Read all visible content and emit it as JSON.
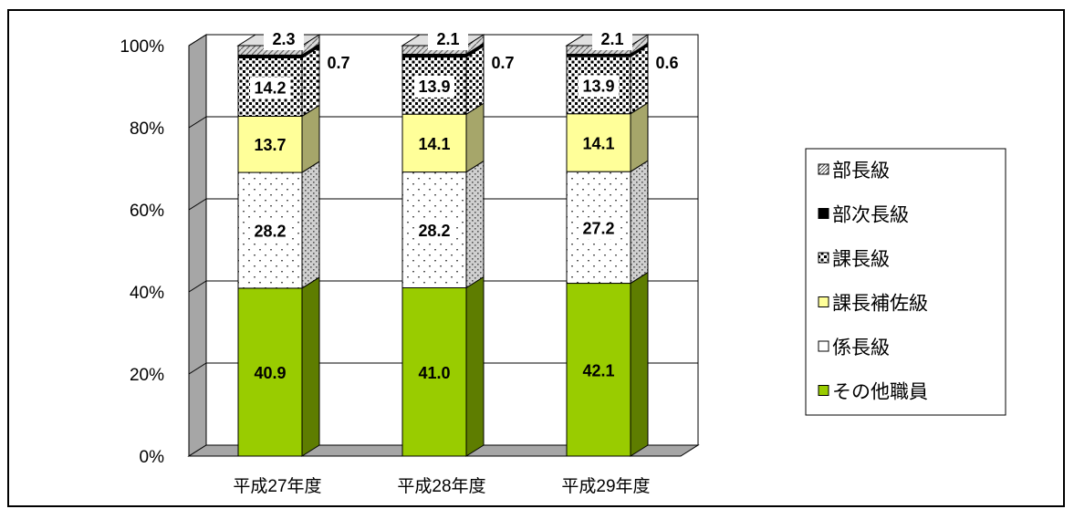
{
  "chart_data": {
    "type": "bar",
    "stacked": true,
    "percent_axis": true,
    "categories": [
      "平成27年度",
      "平成28年度",
      "平成29年度"
    ],
    "series": [
      {
        "name": "その他職員",
        "values": [
          40.9,
          41.0,
          42.1
        ],
        "color": "#99cc00"
      },
      {
        "name": "係長級",
        "values": [
          28.2,
          28.2,
          27.2
        ],
        "color": "#ffffff"
      },
      {
        "name": "課長補佐級",
        "values": [
          13.7,
          14.1,
          14.1
        ],
        "color": "#ffff99"
      },
      {
        "name": "課長級",
        "values": [
          14.2,
          13.9,
          13.9
        ],
        "color": "#ffffff"
      },
      {
        "name": "部次長級",
        "values": [
          0.7,
          0.7,
          0.6
        ],
        "color": "#000000"
      },
      {
        "name": "部長級",
        "values": [
          2.3,
          2.1,
          2.1
        ],
        "color": "#c0c0c0"
      }
    ],
    "data_labels": [
      [
        "40.9",
        "28.2",
        "13.7",
        "14.2",
        "0.7",
        "2.3"
      ],
      [
        "41.0",
        "28.2",
        "14.1",
        "13.9",
        "0.7",
        "2.1"
      ],
      [
        "42.1",
        "27.2",
        "14.1",
        "13.9",
        "0.6",
        "2.1"
      ]
    ],
    "y_ticks": [
      "0%",
      "20%",
      "40%",
      "60%",
      "80%",
      "100%"
    ],
    "ylim": [
      0,
      100
    ],
    "grid": true,
    "three_d": true,
    "legend": {
      "position": "right",
      "entries": [
        "部長級",
        "部次長級",
        "課長級",
        "課長補佐級",
        "係長級",
        "その他職員"
      ]
    }
  }
}
